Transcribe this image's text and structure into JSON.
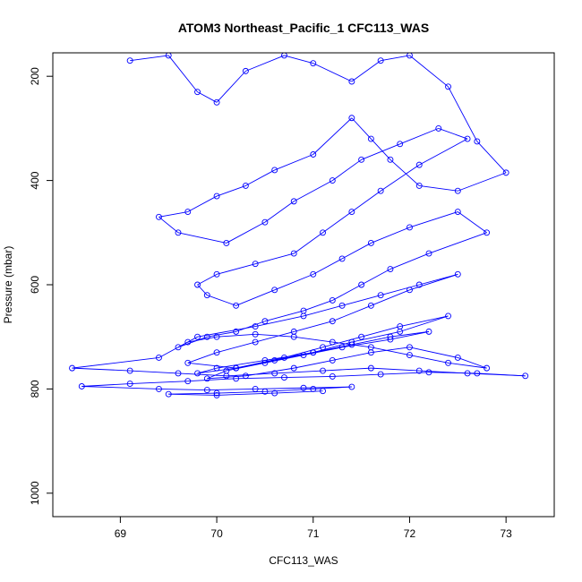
{
  "chart_data": {
    "type": "line",
    "title": "ATOM3 Northeast_Pacific_1 CFC113_WAS",
    "xlabel": "CFC113_WAS",
    "ylabel": "Pressure (mbar)",
    "xlim": [
      68.3,
      73.5
    ],
    "ylim": [
      1045,
      155
    ],
    "y_reversed": true,
    "x_ticks": [
      "69",
      "70",
      "71",
      "72",
      "73"
    ],
    "y_ticks": [
      "200",
      "400",
      "600",
      "800",
      "1000"
    ],
    "series_color": "#0000ff",
    "marker": "open-circle",
    "series": [
      {
        "x": [
          69.1,
          69.5,
          69.8,
          70.0,
          70.3,
          70.7,
          71.0,
          71.4,
          71.7,
          72.0,
          72.4,
          72.7,
          73.0,
          72.5,
          72.1,
          71.8,
          71.6,
          71.4,
          71.0,
          70.6,
          70.3,
          70.0,
          69.7,
          69.4,
          69.6,
          70.1,
          70.5,
          70.8,
          71.2,
          71.5,
          71.9,
          72.3,
          72.6,
          72.1,
          71.7,
          71.4,
          71.1,
          70.8,
          70.4,
          70.0,
          69.8,
          69.9,
          70.2,
          70.6,
          71.0,
          71.3,
          71.6,
          72.0,
          72.5,
          72.8,
          72.2,
          71.8,
          71.5,
          71.2,
          70.9,
          70.5,
          70.2,
          69.9,
          69.6,
          69.8,
          70.4,
          70.9,
          71.3,
          71.7,
          72.1,
          72.5,
          72.0,
          71.6,
          71.2,
          70.8,
          70.4,
          70.0,
          69.7,
          70.2,
          70.7,
          71.1,
          71.5,
          71.9,
          72.4,
          71.9,
          71.4,
          71.0,
          70.6,
          70.2,
          69.8,
          70.0,
          70.5,
          71.0,
          71.4,
          71.8,
          72.2,
          71.8,
          71.3,
          70.9,
          70.5,
          70.1,
          69.9,
          70.3,
          70.8,
          71.2,
          71.6,
          72.0,
          72.5,
          72.8,
          72.4,
          72.0,
          71.6,
          71.2,
          70.8,
          70.4,
          70.0,
          69.7,
          69.4,
          68.5,
          69.1,
          69.6,
          70.1,
          70.6,
          71.1,
          71.6,
          72.1,
          72.6,
          73.2,
          72.7,
          72.2,
          71.7,
          71.2,
          70.7,
          70.2,
          69.7,
          69.1,
          68.6,
          69.4,
          69.9,
          70.4,
          70.9,
          71.4,
          71.0,
          70.5,
          70.0,
          69.5,
          70.0,
          70.6,
          71.1
        ],
        "y": [
          170,
          160,
          230,
          250,
          190,
          160,
          175,
          210,
          170,
          160,
          220,
          325,
          385,
          420,
          410,
          360,
          320,
          280,
          350,
          380,
          410,
          430,
          460,
          470,
          500,
          520,
          480,
          440,
          400,
          360,
          330,
          300,
          320,
          370,
          420,
          460,
          500,
          540,
          560,
          580,
          600,
          620,
          640,
          610,
          580,
          550,
          520,
          490,
          460,
          500,
          540,
          570,
          600,
          630,
          650,
          670,
          690,
          700,
          720,
          700,
          680,
          660,
          640,
          620,
          600,
          580,
          610,
          640,
          670,
          690,
          710,
          730,
          750,
          760,
          740,
          720,
          700,
          680,
          660,
          690,
          710,
          730,
          745,
          760,
          770,
          760,
          745,
          730,
          715,
          700,
          690,
          705,
          720,
          735,
          750,
          765,
          780,
          775,
          760,
          745,
          730,
          720,
          740,
          760,
          750,
          735,
          720,
          710,
          700,
          695,
          700,
          710,
          740,
          760,
          765,
          770,
          775,
          770,
          765,
          760,
          765,
          770,
          775,
          770,
          768,
          772,
          776,
          778,
          780,
          785,
          790,
          795,
          800,
          802,
          800,
          798,
          796,
          800,
          805,
          808,
          810,
          812,
          808,
          804
        ]
      }
    ]
  }
}
